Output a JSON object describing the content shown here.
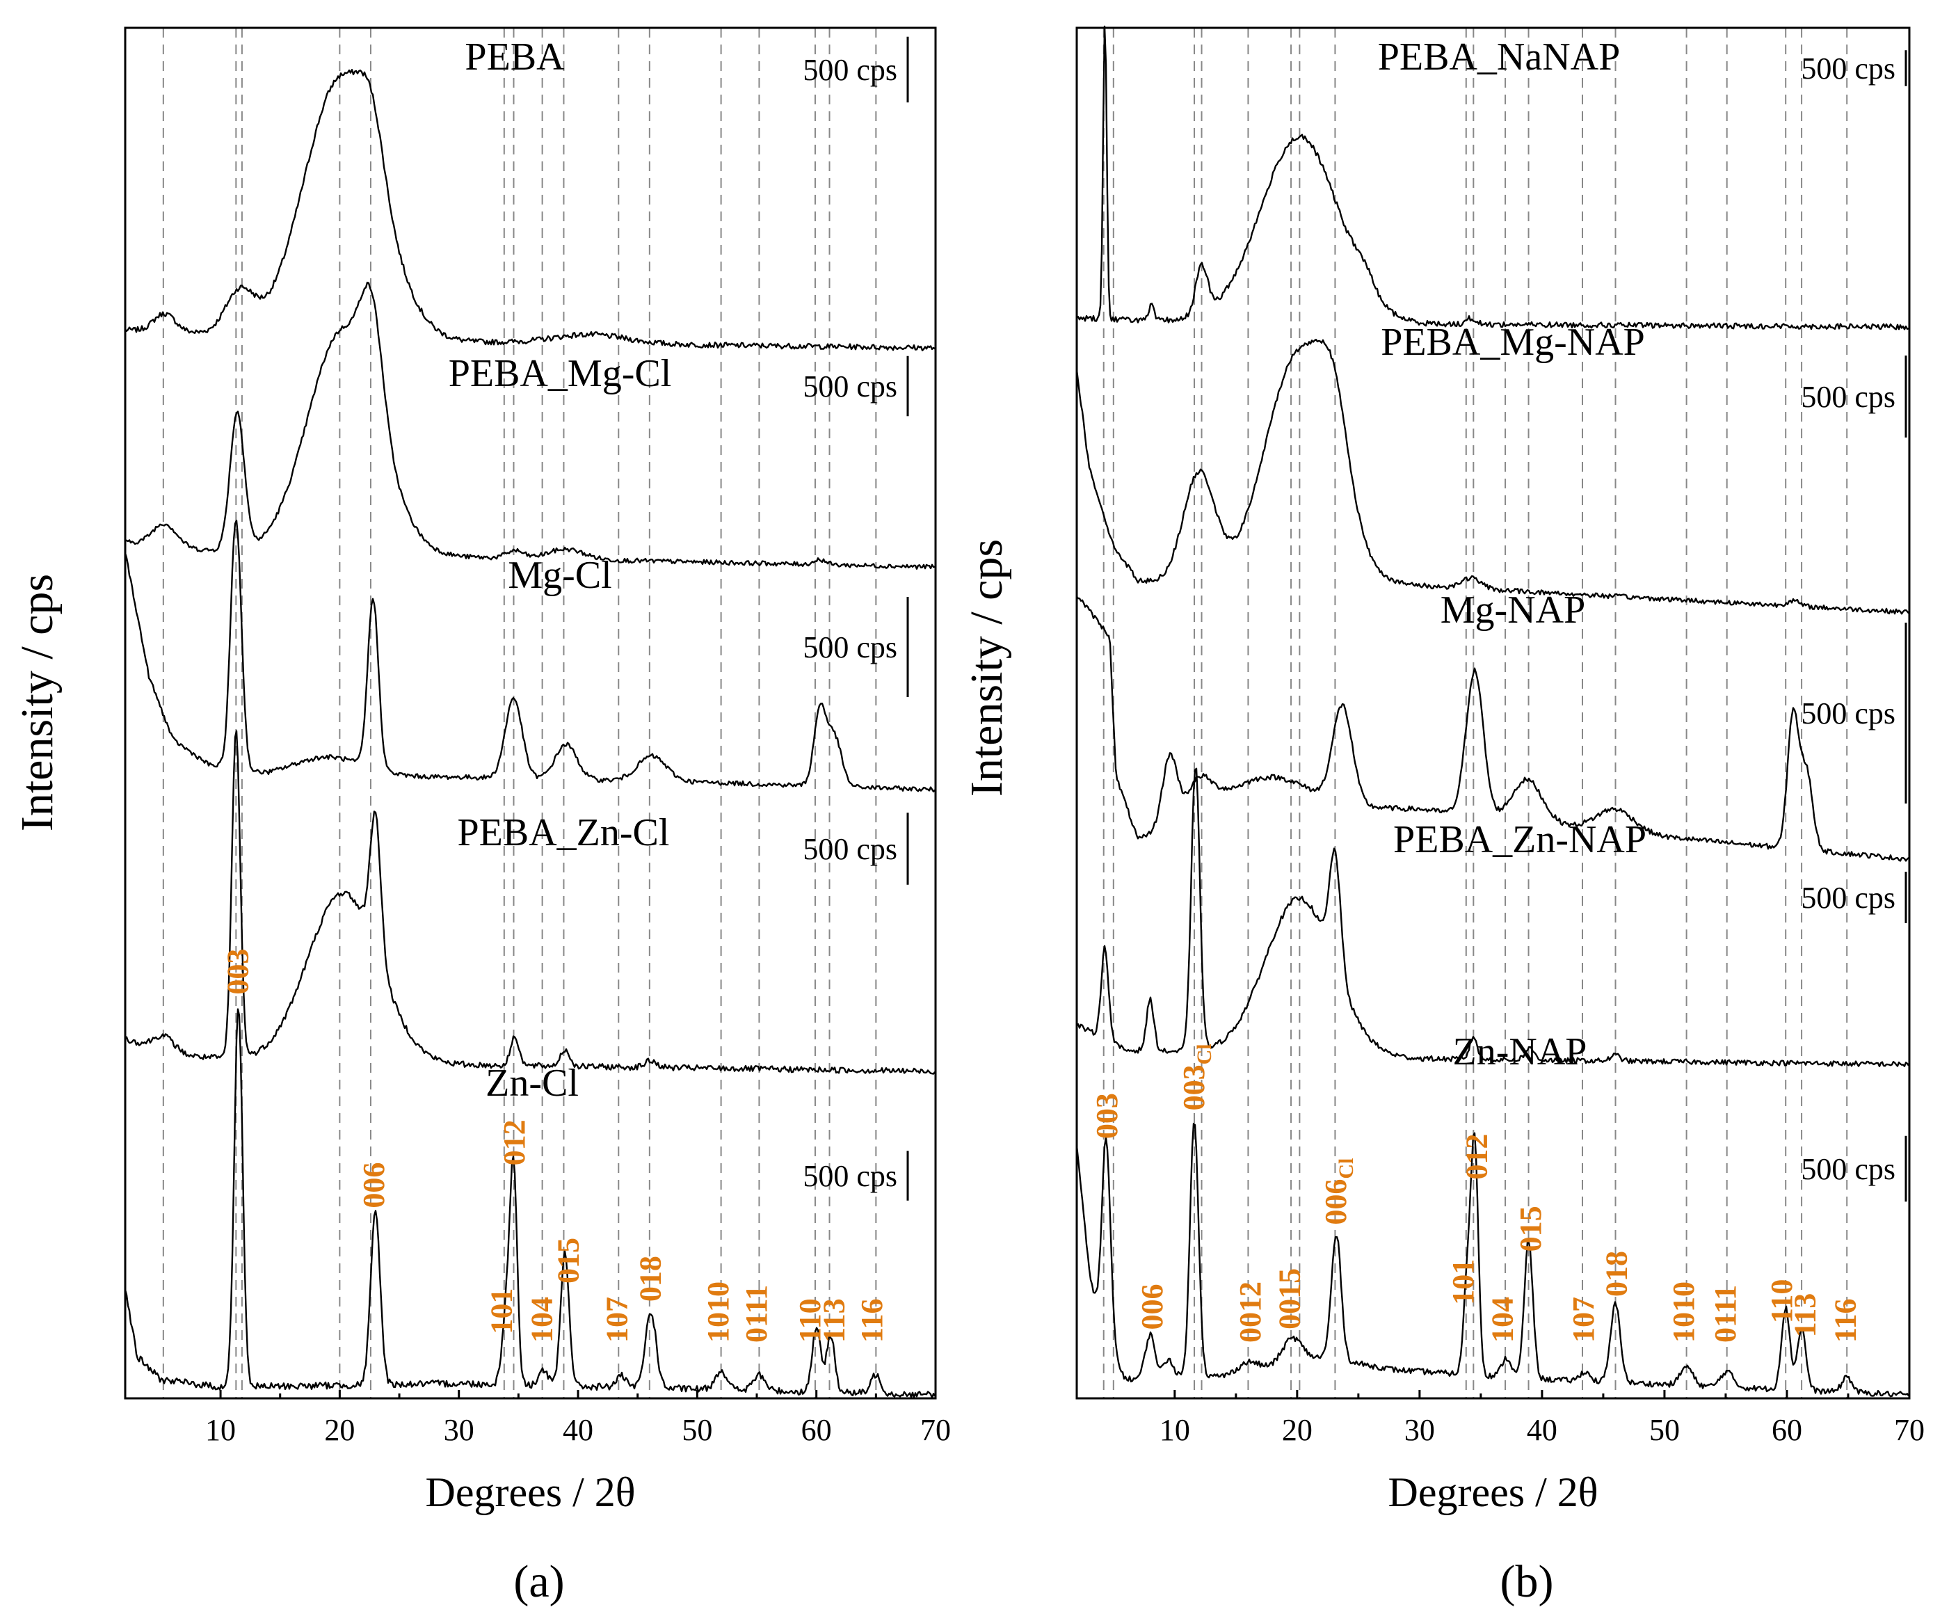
{
  "chart_data": [
    {
      "panel": "a",
      "panel_label": "(a)",
      "type": "line",
      "xlabel": "Degrees / 2θ",
      "ylabel": "Intensity / cps",
      "xlim": [
        2,
        70
      ],
      "xticks": [
        "10",
        "20",
        "30",
        "40",
        "50",
        "60",
        "70"
      ],
      "reference_lines_2theta": [
        5.2,
        11.3,
        11.8,
        20.0,
        22.6,
        33.8,
        34.6,
        37.0,
        38.8,
        43.4,
        46.0,
        52.0,
        55.2,
        59.9,
        61.1,
        65.0
      ],
      "series": [
        {
          "name": "PEBA",
          "scale": "500 cps",
          "scale_rel": 0.22,
          "baseline": [
            [
              2,
              0.06
            ],
            [
              8,
              0.05
            ],
            [
              14,
              0.03
            ],
            [
              30,
              0.02
            ],
            [
              50,
              0.01
            ],
            [
              70,
              0.0
            ]
          ],
          "peaks": [
            [
              5.3,
              0.06,
              0.9
            ],
            [
              11.6,
              0.14,
              1.2
            ],
            [
              20.2,
              0.88,
              3.2
            ],
            [
              22.7,
              0.18,
              1.0
            ],
            [
              41,
              0.03,
              3
            ]
          ]
        },
        {
          "name": "PEBA_Mg-Cl",
          "scale": "500 cps",
          "scale_rel": 0.24,
          "baseline": [
            [
              2,
              0.1
            ],
            [
              8,
              0.07
            ],
            [
              14,
              0.05
            ],
            [
              30,
              0.04
            ],
            [
              50,
              0.02
            ],
            [
              70,
              0.0
            ]
          ],
          "peaks": [
            [
              5.3,
              0.09,
              1.0
            ],
            [
              11.4,
              0.55,
              0.6
            ],
            [
              20.3,
              0.9,
              3.0
            ],
            [
              22.7,
              0.4,
              0.9
            ],
            [
              34.7,
              0.03,
              0.7
            ],
            [
              39,
              0.04,
              1.5
            ],
            [
              60.3,
              0.02,
              0.5
            ]
          ]
        },
        {
          "name": "Mg-Cl",
          "scale": "500 cps",
          "scale_rel": 0.4,
          "baseline": [
            [
              2,
              0.95
            ],
            [
              4,
              0.45
            ],
            [
              6,
              0.2
            ],
            [
              9,
              0.1
            ],
            [
              14,
              0.05
            ],
            [
              30,
              0.05
            ],
            [
              50,
              0.03
            ],
            [
              70,
              0.0
            ]
          ],
          "peaks": [
            [
              11.3,
              1.0,
              0.45
            ],
            [
              19,
              0.08,
              3
            ],
            [
              22.8,
              0.68,
              0.45
            ],
            [
              34.6,
              0.32,
              0.7
            ],
            [
              39.0,
              0.14,
              0.9
            ],
            [
              46.2,
              0.1,
              1.2
            ],
            [
              60.3,
              0.3,
              0.5
            ],
            [
              61.5,
              0.2,
              0.6
            ]
          ]
        },
        {
          "name": "PEBA_Zn-Cl",
          "scale": "500 cps",
          "scale_rel": 0.22,
          "baseline": [
            [
              2,
              0.1
            ],
            [
              6,
              0.05
            ],
            [
              14,
              0.03
            ],
            [
              30,
              0.02
            ],
            [
              70,
              0.0
            ]
          ],
          "peaks": [
            [
              5.3,
              0.05,
              0.9
            ],
            [
              11.3,
              1.0,
              0.35
            ],
            [
              20.3,
              0.52,
              3.0
            ],
            [
              23.0,
              0.42,
              0.45
            ],
            [
              34.7,
              0.09,
              0.35
            ],
            [
              38.9,
              0.05,
              0.4
            ],
            [
              46.1,
              0.02,
              0.5
            ]
          ]
        },
        {
          "name": "Zn-Cl",
          "scale": "500 cps",
          "scale_rel": 0.13,
          "baseline": [
            [
              2,
              0.28
            ],
            [
              3,
              0.1
            ],
            [
              5,
              0.04
            ],
            [
              10,
              0.02
            ],
            [
              30,
              0.03
            ],
            [
              70,
              0.0
            ]
          ],
          "peaks": [
            [
              11.5,
              1.0,
              0.35
            ],
            [
              23.0,
              0.45,
              0.4
            ],
            [
              34.0,
              0.2,
              0.35
            ],
            [
              34.6,
              0.55,
              0.3
            ],
            [
              37.1,
              0.04,
              0.4
            ],
            [
              38.9,
              0.35,
              0.35
            ],
            [
              43.6,
              0.03,
              0.4
            ],
            [
              46.1,
              0.2,
              0.45
            ],
            [
              52.0,
              0.05,
              0.5
            ],
            [
              55.2,
              0.04,
              0.5
            ],
            [
              60.0,
              0.17,
              0.35
            ],
            [
              61.2,
              0.15,
              0.35
            ],
            [
              65.0,
              0.05,
              0.4
            ]
          ]
        }
      ],
      "annotations": [
        {
          "text": "003",
          "x": 11.5,
          "sub": ""
        },
        {
          "text": "006",
          "x": 22.9,
          "sub": ""
        },
        {
          "text": "101",
          "x": 33.6,
          "sub": ""
        },
        {
          "text": "012",
          "x": 34.7,
          "sub": ""
        },
        {
          "text": "104",
          "x": 37.0,
          "sub": ""
        },
        {
          "text": "015",
          "x": 39.2,
          "sub": ""
        },
        {
          "text": "107",
          "x": 43.3,
          "sub": ""
        },
        {
          "text": "018",
          "x": 46.1,
          "sub": ""
        },
        {
          "text": "1010",
          "x": 51.8,
          "sub": ""
        },
        {
          "text": "0111",
          "x": 55.0,
          "sub": ""
        },
        {
          "text": "110",
          "x": 59.5,
          "sub": ""
        },
        {
          "text": "113",
          "x": 61.5,
          "sub": ""
        },
        {
          "text": "116",
          "x": 64.7,
          "sub": ""
        }
      ]
    },
    {
      "panel": "b",
      "panel_label": "(b)",
      "type": "line",
      "xlabel": "Degrees / 2θ",
      "ylabel": "Intensity / cps",
      "xlim": [
        2,
        70
      ],
      "xticks": [
        "10",
        "20",
        "30",
        "40",
        "50",
        "60",
        "70"
      ],
      "reference_lines_2theta": [
        4.2,
        5.0,
        11.6,
        12.2,
        16.0,
        19.5,
        20.2,
        23.1,
        33.8,
        34.4,
        37.0,
        38.9,
        43.3,
        46.0,
        51.8,
        55.1,
        59.9,
        61.2,
        64.9
      ],
      "series": [
        {
          "name": "PEBA_NaNAP",
          "scale": "500 cps",
          "scale_rel": 0.12,
          "baseline": [
            [
              2,
              0.03
            ],
            [
              10,
              0.02
            ],
            [
              30,
              0.01
            ],
            [
              70,
              0.0
            ]
          ],
          "peaks": [
            [
              4.3,
              1.0,
              0.15
            ],
            [
              8.1,
              0.05,
              0.2
            ],
            [
              12.2,
              0.16,
              0.5
            ],
            [
              20.2,
              0.62,
              3.2
            ],
            [
              25.5,
              0.05,
              0.8
            ],
            [
              34.2,
              0.02,
              0.4
            ]
          ]
        },
        {
          "name": "PEBA_Mg-NAP",
          "scale": "500 cps",
          "scale_rel": 0.31,
          "baseline": [
            [
              2,
              0.92
            ],
            [
              3,
              0.55
            ],
            [
              5,
              0.25
            ],
            [
              7,
              0.12
            ],
            [
              12,
              0.1
            ],
            [
              30,
              0.1
            ],
            [
              50,
              0.05
            ],
            [
              70,
              0.0
            ]
          ],
          "peaks": [
            [
              12.0,
              0.42,
              1.3
            ],
            [
              20.2,
              0.88,
              2.8
            ],
            [
              23.0,
              0.3,
              1.2
            ],
            [
              34.2,
              0.04,
              0.8
            ],
            [
              60.5,
              0.02,
              0.5
            ]
          ]
        },
        {
          "name": "Mg-NAP",
          "scale": "500 cps",
          "scale_rel": 0.65,
          "baseline": [
            [
              2,
              0.95
            ],
            [
              4.7,
              0.8
            ],
            [
              5.2,
              0.3
            ],
            [
              7,
              0.07
            ],
            [
              14,
              0.2
            ],
            [
              30,
              0.18
            ],
            [
              50,
              0.08
            ],
            [
              70,
              0.0
            ]
          ],
          "peaks": [
            [
              9.6,
              0.25,
              0.6
            ],
            [
              12,
              0.12,
              1
            ],
            [
              18,
              0.1,
              3
            ],
            [
              23.7,
              0.35,
              0.8
            ],
            [
              34.5,
              0.52,
              0.7
            ],
            [
              38.8,
              0.15,
              1.2
            ],
            [
              46,
              0.08,
              1.5
            ],
            [
              60.5,
              0.48,
              0.45
            ],
            [
              61.6,
              0.28,
              0.5
            ]
          ]
        },
        {
          "name": "PEBA_Zn-NAP",
          "scale": "500 cps",
          "scale_rel": 0.18,
          "baseline": [
            [
              2,
              0.14
            ],
            [
              6,
              0.05
            ],
            [
              14,
              0.04
            ],
            [
              30,
              0.02
            ],
            [
              70,
              0.0
            ]
          ],
          "peaks": [
            [
              4.3,
              0.32,
              0.3
            ],
            [
              8.0,
              0.18,
              0.3
            ],
            [
              11.7,
              1.0,
              0.35
            ],
            [
              20.2,
              0.55,
              2.8
            ],
            [
              23.1,
              0.4,
              0.45
            ],
            [
              34.4,
              0.08,
              0.3
            ],
            [
              39,
              0.04,
              0.4
            ],
            [
              46,
              0.02,
              0.4
            ]
          ]
        },
        {
          "name": "Zn-NAP",
          "scale": "500 cps",
          "scale_rel": 0.21,
          "baseline": [
            [
              2,
              0.8
            ],
            [
              3,
              0.4
            ],
            [
              4,
              0.2
            ],
            [
              6,
              0.05
            ],
            [
              14,
              0.06
            ],
            [
              22,
              0.12
            ],
            [
              28,
              0.08
            ],
            [
              40,
              0.05
            ],
            [
              70,
              0.0
            ]
          ],
          "peaks": [
            [
              4.4,
              0.65,
              0.35
            ],
            [
              8.0,
              0.14,
              0.4
            ],
            [
              9.5,
              0.06,
              0.4
            ],
            [
              11.6,
              0.82,
              0.35
            ],
            [
              16,
              0.03,
              0.8
            ],
            [
              19.6,
              0.08,
              0.8
            ],
            [
              23.2,
              0.4,
              0.4
            ],
            [
              33.9,
              0.3,
              0.3
            ],
            [
              34.5,
              0.73,
              0.3
            ],
            [
              37.1,
              0.06,
              0.4
            ],
            [
              38.9,
              0.44,
              0.35
            ],
            [
              43.5,
              0.03,
              0.4
            ],
            [
              46.0,
              0.25,
              0.4
            ],
            [
              51.8,
              0.06,
              0.5
            ],
            [
              55.1,
              0.05,
              0.5
            ],
            [
              59.9,
              0.26,
              0.35
            ],
            [
              61.2,
              0.2,
              0.35
            ],
            [
              64.9,
              0.05,
              0.4
            ]
          ]
        }
      ],
      "annotations": [
        {
          "text": "003",
          "x": 4.5,
          "sub": ""
        },
        {
          "text": "006",
          "x": 8.2,
          "sub": ""
        },
        {
          "text": "003",
          "x": 11.6,
          "sub": "Cl"
        },
        {
          "text": "0012",
          "x": 16.2,
          "sub": ""
        },
        {
          "text": "0015",
          "x": 19.4,
          "sub": ""
        },
        {
          "text": "006",
          "x": 23.2,
          "sub": "Cl"
        },
        {
          "text": "101",
          "x": 33.6,
          "sub": ""
        },
        {
          "text": "012",
          "x": 34.7,
          "sub": ""
        },
        {
          "text": "104",
          "x": 36.8,
          "sub": ""
        },
        {
          "text": "015",
          "x": 39.1,
          "sub": ""
        },
        {
          "text": "107",
          "x": 43.4,
          "sub": ""
        },
        {
          "text": "018",
          "x": 46.1,
          "sub": ""
        },
        {
          "text": "1010",
          "x": 51.6,
          "sub": ""
        },
        {
          "text": "0111",
          "x": 55.0,
          "sub": ""
        },
        {
          "text": "110",
          "x": 59.6,
          "sub": ""
        },
        {
          "text": "113",
          "x": 61.5,
          "sub": ""
        },
        {
          "text": "116",
          "x": 64.8,
          "sub": ""
        }
      ]
    }
  ]
}
